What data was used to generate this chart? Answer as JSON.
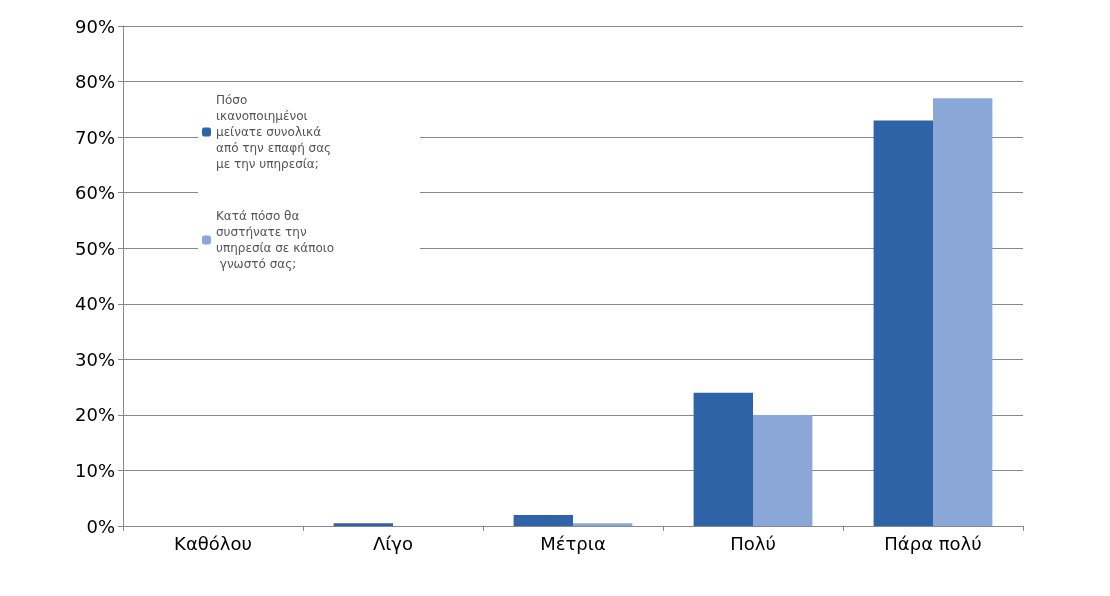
{
  "chart_data": {
    "type": "bar",
    "categories": [
      "Καθόλου",
      "Λίγο",
      "Μέτρια",
      "Πολύ",
      "Πάρα πολύ"
    ],
    "series": [
      {
        "name": "Πόσο ικανοποιημένοι μείνατε συνολικά από την επαφή σας με την υπηρεσία;",
        "color": "#2e63a8",
        "values": [
          0,
          0.5,
          2,
          24,
          73
        ]
      },
      {
        "name": "Κατά πόσο θα συστήνατε την υπηρεσία σε κάποιο γνωστό σας;",
        "color": "#8ba7d8",
        "values": [
          0,
          0,
          0.5,
          20,
          77
        ]
      }
    ],
    "ylim": [
      0,
      90
    ],
    "yticks": [
      {
        "value": 0,
        "label": "0%"
      },
      {
        "value": 10,
        "label": "10%"
      },
      {
        "value": 20,
        "label": "20%"
      },
      {
        "value": 30,
        "label": "30%"
      },
      {
        "value": 40,
        "label": "40%"
      },
      {
        "value": 50,
        "label": "50%"
      },
      {
        "value": 60,
        "label": "60%"
      },
      {
        "value": 70,
        "label": "70%"
      },
      {
        "value": 80,
        "label": "80%"
      },
      {
        "value": 90,
        "label": "90%"
      }
    ],
    "grid": "y",
    "legend": "top left"
  }
}
